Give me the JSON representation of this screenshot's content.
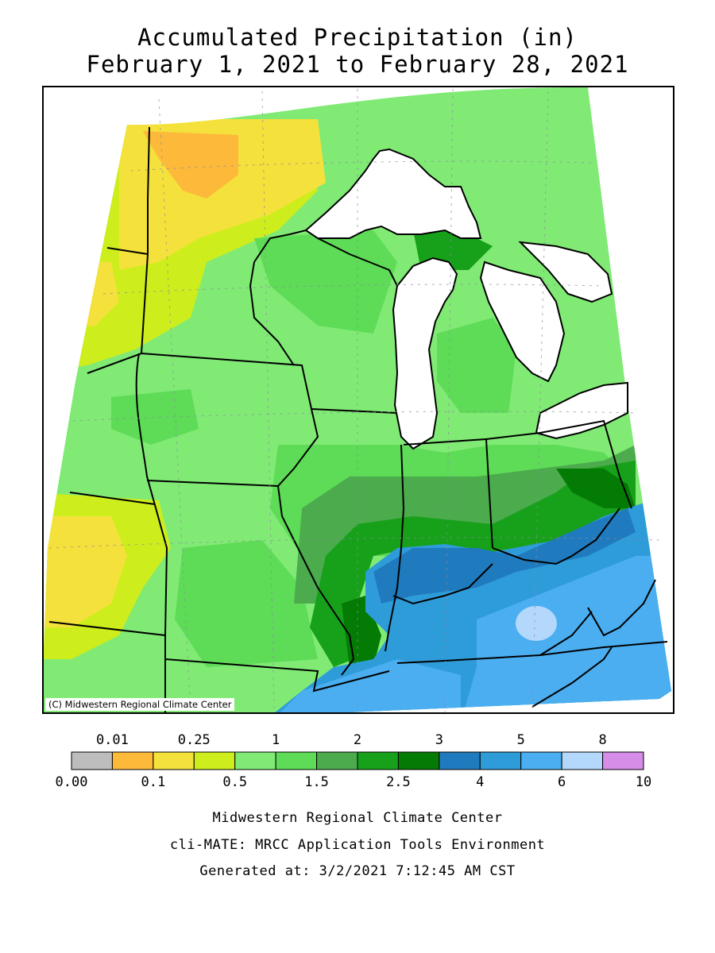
{
  "title": {
    "line1": "Accumulated Precipitation (in)",
    "line2": "February 1, 2021 to February 28, 2021"
  },
  "map": {
    "credit": "(C) Midwestern Regional Climate Center"
  },
  "legend": {
    "boundaries": [
      "0.00",
      "0.01",
      "0.1",
      "0.25",
      "0.5",
      "1",
      "1.5",
      "2",
      "2.5",
      "3",
      "4",
      "5",
      "6",
      "8",
      "10"
    ],
    "top_labels": [
      "0.01",
      "0.25",
      "1",
      "2",
      "3",
      "5",
      "8"
    ],
    "bottom_labels": [
      "0.00",
      "0.1",
      "0.5",
      "1.5",
      "2.5",
      "4",
      "6",
      "10"
    ],
    "colors": [
      "#bdbdbd",
      "#fcb93a",
      "#f5e13b",
      "#cdee1c",
      "#80ea75",
      "#5edb57",
      "#4cab4d",
      "#17a01a",
      "#047b04",
      "#1f7bbd",
      "#2f9cda",
      "#4aaef0",
      "#b4d8fc",
      "#d58de8"
    ]
  },
  "footer": {
    "line1": "Midwestern Regional Climate Center",
    "line2": "cli-MATE: MRCC Application Tools Environment",
    "line3": "Generated at: 3/2/2021 7:12:45 AM CST"
  }
}
